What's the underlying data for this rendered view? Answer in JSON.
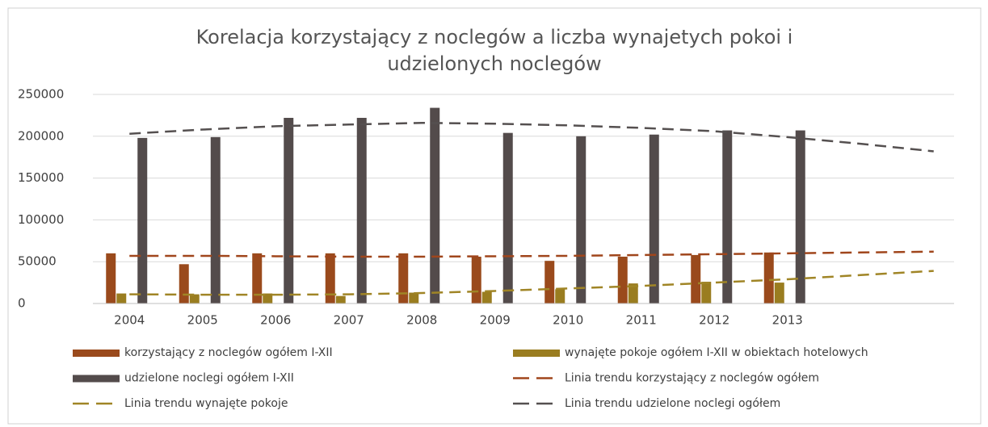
{
  "chart_data": {
    "type": "bar",
    "title": [
      "Korelacja korzystający z noclegów a liczba wynajetych pokoi i",
      "udzielonych noclegów"
    ],
    "categories": [
      "2004",
      "2005",
      "2006",
      "2007",
      "2008",
      "2009",
      "2010",
      "2011",
      "2012",
      "2013",
      null,
      null
    ],
    "ylim": [
      0,
      250000
    ],
    "yticks": [
      0,
      50000,
      100000,
      150000,
      200000,
      250000
    ],
    "grid": true,
    "series": [
      {
        "name": "korzystający z noclegów ogółem I-XII",
        "type": "bar",
        "color": "#9a4a1c",
        "values": [
          60000,
          47000,
          60000,
          60000,
          60000,
          56000,
          51000,
          56000,
          58000,
          61000,
          null,
          null
        ]
      },
      {
        "name": "wynajęte pokoje ogółem I-XII w obiektach hotelowych",
        "type": "bar",
        "color": "#9a7d20",
        "values": [
          12000,
          11000,
          12000,
          9000,
          13000,
          14000,
          17000,
          24000,
          26000,
          25000,
          null,
          null
        ]
      },
      {
        "name": "udzielone noclegi ogółem I-XII",
        "type": "bar",
        "color": "#534b4b",
        "values": [
          198000,
          199000,
          222000,
          222000,
          234000,
          204000,
          200000,
          202000,
          207000,
          207000,
          null,
          null
        ]
      },
      {
        "name": "Linia trendu korzystający z noclegów ogółem",
        "type": "line",
        "color": "#a0461c",
        "values": [
          57000,
          57000,
          56500,
          56000,
          56000,
          56500,
          57000,
          58000,
          59000,
          60000,
          61000,
          62000
        ]
      },
      {
        "name": "Linia trendu wynajęte pokoje",
        "type": "line",
        "color": "#a08526",
        "values": [
          11000,
          10500,
          10500,
          11000,
          12500,
          15000,
          18000,
          21000,
          25000,
          29000,
          34000,
          39000
        ]
      },
      {
        "name": "Linia trendu udzielone noclegi ogółem",
        "type": "line",
        "color": "#555050",
        "values": [
          203000,
          208000,
          212000,
          214000,
          216000,
          215000,
          213000,
          210000,
          206000,
          199000,
          191000,
          182000
        ]
      }
    ]
  }
}
